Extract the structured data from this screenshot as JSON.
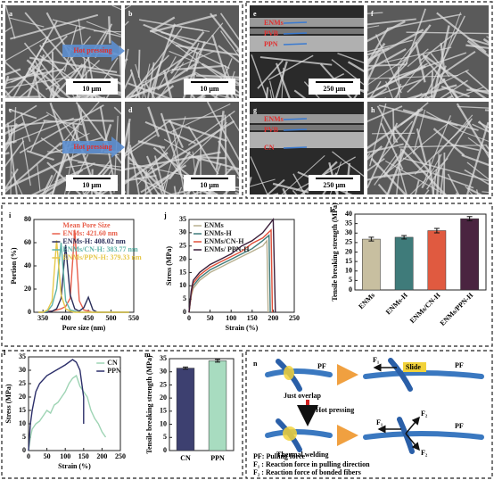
{
  "sem_panels": [
    {
      "label": "a",
      "scale_bar": "10 μm"
    },
    {
      "label": "b",
      "scale_bar": "10 μm"
    },
    {
      "label": "c",
      "scale_bar": "10 μm"
    },
    {
      "label": "d",
      "scale_bar": "10 μm"
    },
    {
      "label": "e",
      "scale_bar": "250 μm",
      "layers": [
        "ENMs",
        "PVB",
        "PPN"
      ]
    },
    {
      "label": "f"
    },
    {
      "label": "g",
      "scale_bar": "250 μm",
      "layers": [
        "ENMs",
        "PVB",
        "CN"
      ]
    },
    {
      "label": "h"
    }
  ],
  "arrows": [
    "Hot pressing",
    "Hot pressing"
  ],
  "chart_data": [
    {
      "label": "i",
      "type": "line",
      "xlabel": "Pore size (nm)",
      "ylabel": "Portion (%)",
      "xlim": [
        330,
        550
      ],
      "xticks": [
        350,
        400,
        450,
        500,
        550
      ],
      "ylim": [
        0,
        80
      ],
      "yticks": [
        0,
        20,
        40,
        60,
        80
      ],
      "legend_title": "Mean Pore Size",
      "legend": "upper right",
      "x": [
        340,
        350,
        360,
        370,
        380,
        390,
        400,
        410,
        420,
        430,
        440,
        450,
        460,
        470,
        480,
        490,
        500,
        510,
        520,
        530,
        540
      ],
      "series": [
        {
          "name": "ENMs: 421.60 nm",
          "color": "#e8604c",
          "values": [
            0,
            0,
            1,
            1,
            2,
            3,
            5,
            12,
            71,
            10,
            2,
            1,
            0,
            0,
            0,
            0,
            0,
            0,
            0,
            0,
            0
          ]
        },
        {
          "name": "ENMs-H: 408.02 nm",
          "color": "#2c2f5a",
          "values": [
            0,
            0,
            0,
            1,
            3,
            12,
            58,
            15,
            3,
            1,
            4,
            13,
            2,
            0,
            0,
            0,
            0,
            0,
            0,
            0,
            0
          ]
        },
        {
          "name": "ENMs/CN-H: 383.77 nm",
          "color": "#5fb3a8",
          "values": [
            0,
            0,
            1,
            6,
            20,
            60,
            10,
            2,
            1,
            0,
            0,
            0,
            0,
            0,
            0,
            0,
            0,
            0,
            0,
            0,
            0
          ]
        },
        {
          "name": "ENMs/PPN-H: 379.33 nm",
          "color": "#e6c84a",
          "values": [
            0,
            0,
            2,
            10,
            62,
            15,
            3,
            1,
            0,
            0,
            0,
            0,
            0,
            0,
            0,
            0,
            0,
            0,
            0,
            0,
            0
          ]
        }
      ]
    },
    {
      "label": "j",
      "type": "line",
      "xlabel": "Strain (%)",
      "ylabel": "Stress (MPa)",
      "xlim": [
        0,
        250
      ],
      "xticks": [
        0,
        50,
        100,
        150,
        200,
        250
      ],
      "ylim": [
        0,
        35
      ],
      "yticks": [
        0,
        5,
        10,
        15,
        20,
        25,
        30,
        35
      ],
      "legend": "upper left",
      "series": [
        {
          "name": "ENMs",
          "color": "#b8b090",
          "x": [
            0,
            5,
            10,
            25,
            50,
            75,
            100,
            125,
            150,
            175,
            185,
            188
          ],
          "values": [
            0,
            6,
            9,
            12,
            15,
            17,
            19,
            21,
            23,
            25,
            27,
            0
          ]
        },
        {
          "name": "ENMs-H",
          "color": "#3f7b7a",
          "x": [
            0,
            5,
            10,
            25,
            50,
            75,
            100,
            125,
            150,
            175,
            190,
            193
          ],
          "values": [
            0,
            7,
            10,
            13,
            16,
            18,
            20,
            22,
            24,
            27,
            29,
            0
          ]
        },
        {
          "name": "ENMs/CN-H",
          "color": "#e0503a",
          "x": [
            0,
            5,
            10,
            25,
            50,
            75,
            100,
            125,
            150,
            175,
            195,
            198
          ],
          "values": [
            0,
            7,
            11,
            14,
            17,
            19,
            21,
            23,
            26,
            28,
            31,
            0
          ]
        },
        {
          "name": "ENMs/ PPN-H",
          "color": "#3a1f3a",
          "x": [
            0,
            5,
            10,
            25,
            50,
            75,
            100,
            125,
            150,
            175,
            200,
            205
          ],
          "values": [
            0,
            8,
            12,
            15,
            18,
            20,
            22,
            25,
            27,
            30,
            35,
            0
          ]
        }
      ]
    },
    {
      "label": "k",
      "type": "bar",
      "ylabel": "Tensile breaking strength (MPa)",
      "categories": [
        "ENMs",
        "ENMs-H",
        "ENMs/CN-H",
        "ENMs/PPN-H"
      ],
      "values": [
        26.8,
        27.8,
        31.3,
        37.6
      ],
      "errors": [
        1.0,
        0.9,
        1.2,
        1.1
      ],
      "colors": [
        "#c8bfa0",
        "#3f7b7a",
        "#e05a40",
        "#4a2440"
      ],
      "ylim": [
        0,
        40
      ],
      "yticks": [
        0,
        5,
        10,
        15,
        20,
        25,
        30,
        35,
        40
      ],
      "xtick_rotation": -45
    },
    {
      "label": "l",
      "type": "line",
      "xlabel": "Strain (%)",
      "ylabel": "Stress (MPa)",
      "xlim": [
        0,
        250
      ],
      "xticks": [
        0,
        50,
        100,
        150,
        200,
        250
      ],
      "ylim": [
        0,
        35
      ],
      "yticks": [
        0,
        5,
        10,
        15,
        20,
        25,
        30,
        35
      ],
      "legend": "upper right",
      "series": [
        {
          "name": "CN",
          "color": "#9ed4b4",
          "x": [
            0,
            5,
            10,
            20,
            30,
            40,
            50,
            60,
            70,
            80,
            90,
            100,
            110,
            120,
            130,
            140,
            150,
            160,
            170,
            180,
            190,
            200,
            210
          ],
          "values": [
            0,
            5,
            8,
            10,
            11,
            13,
            15,
            14,
            17,
            18,
            20,
            22,
            25,
            27,
            28,
            24,
            22,
            20,
            15,
            12,
            10,
            7,
            5
          ]
        },
        {
          "name": "PPN",
          "color": "#2c2f6a",
          "x": [
            0,
            5,
            10,
            20,
            30,
            50,
            75,
            100,
            120,
            130,
            140,
            150,
            150
          ],
          "values": [
            0,
            10,
            15,
            22,
            25,
            28,
            30,
            32,
            34,
            33,
            30,
            20,
            10
          ]
        }
      ]
    },
    {
      "label": "m",
      "type": "bar",
      "ylabel": "Tensile breaking strength (MPa)",
      "categories": [
        "CN",
        "PPN"
      ],
      "values": [
        31.4,
        34.2
      ],
      "errors": [
        0.4,
        0.5
      ],
      "colors": [
        "#3d4070",
        "#a8dcc0"
      ],
      "ylim": [
        0,
        35
      ],
      "yticks": [
        0,
        5,
        10,
        15,
        20,
        25,
        30,
        35
      ],
      "xtick_rotation": 0
    }
  ],
  "diagram_n": {
    "label": "n",
    "top": {
      "pf_left": "PF",
      "f1": "F₁",
      "slide": "Slide",
      "pf_right": "PF",
      "caption": "Just overlap"
    },
    "arrow": "Hot pressing",
    "bottom": {
      "f2_top": "F₂",
      "f1": "F₁",
      "f2_bottom": "F₂",
      "pf_right": "PF",
      "caption": "Thermal welding"
    },
    "key": [
      "PF: Pulling force",
      "F₁ : Reaction force in pulling direction",
      "F₂ : Reaction force of bonded fibers"
    ]
  }
}
